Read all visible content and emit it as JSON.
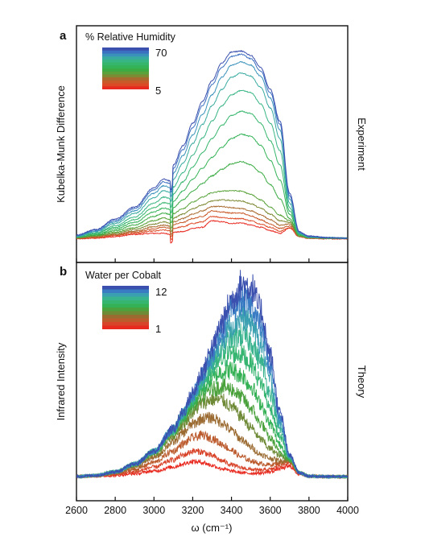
{
  "chart_data": [
    {
      "panel": "a",
      "type": "line",
      "ylabel": "Kubelka-Munk Difference",
      "side_label": "Experiment",
      "legend": {
        "title": "% Relative Humidity",
        "max_label": "70",
        "min_label": "5"
      },
      "xlim": [
        2600,
        4000
      ],
      "series_count": 14,
      "x": [
        2600,
        2700,
        2800,
        2900,
        3000,
        3050,
        3090,
        3100,
        3150,
        3200,
        3250,
        3300,
        3350,
        3400,
        3450,
        3500,
        3550,
        3600,
        3650,
        3700,
        3750,
        3800,
        3900,
        4000
      ],
      "series": [
        {
          "values": [
            0.5,
            0.6,
            0.9,
            1.3,
            1.5,
            1.5,
            1.3,
            1.7,
            1.8,
            2.4,
            2.6,
            3.8,
            3.6,
            3.3,
            3.4,
            3.0,
            2.6,
            2.0,
            1.5,
            2.5,
            0.9,
            0.6,
            0.5,
            0.5
          ]
        },
        {
          "values": [
            0.5,
            0.7,
            1.1,
            1.5,
            1.9,
            2.1,
            1.9,
            2.4,
            2.7,
            3.3,
            3.6,
            4.6,
            4.4,
            4.2,
            4.2,
            3.8,
            3.2,
            2.6,
            1.9,
            2.5,
            0.9,
            0.6,
            0.5,
            0.5
          ]
        },
        {
          "values": [
            0.6,
            0.8,
            1.2,
            1.7,
            2.3,
            2.6,
            2.4,
            3.1,
            3.5,
            4.2,
            4.6,
            5.6,
            5.4,
            5.2,
            5.2,
            4.7,
            4.0,
            3.2,
            2.4,
            2.8,
            1.0,
            0.7,
            0.6,
            0.5
          ]
        },
        {
          "values": [
            0.6,
            0.9,
            1.3,
            1.9,
            2.7,
            3.0,
            2.8,
            3.6,
            4.2,
            5.0,
            5.6,
            6.4,
            6.4,
            6.2,
            6.0,
            5.6,
            4.9,
            4.0,
            3.0,
            3.2,
            1.0,
            0.7,
            0.6,
            0.6
          ]
        },
        {
          "values": [
            0.7,
            1.0,
            1.5,
            2.2,
            3.2,
            3.6,
            3.3,
            4.3,
            5.0,
            6.0,
            6.7,
            7.4,
            7.6,
            7.5,
            7.4,
            6.9,
            6.1,
            5.0,
            3.8,
            3.5,
            1.0,
            0.7,
            0.6,
            0.6
          ]
        },
        {
          "values": [
            0.7,
            1.1,
            1.7,
            2.5,
            3.8,
            4.3,
            4.0,
            5.1,
            6.0,
            7.2,
            8.1,
            8.9,
            9.2,
            9.3,
            9.2,
            8.6,
            7.6,
            6.3,
            4.8,
            3.8,
            1.0,
            0.7,
            0.6,
            0.6
          ]
        },
        {
          "values": [
            0.8,
            1.2,
            2.0,
            3.0,
            4.6,
            5.2,
            4.9,
            6.2,
            7.6,
            9.2,
            10.6,
            12.0,
            13.2,
            14.2,
            14.6,
            14.0,
            12.6,
            10.4,
            7.8,
            4.2,
            1.2,
            0.7,
            0.6,
            0.6
          ]
        },
        {
          "values": [
            0.8,
            1.3,
            2.3,
            3.5,
            5.4,
            6.1,
            5.8,
            7.4,
            9.2,
            11.4,
            13.4,
            15.4,
            17.2,
            18.8,
            19.6,
            19.2,
            17.6,
            14.8,
            11.2,
            5.0,
            1.3,
            0.8,
            0.6,
            0.6
          ]
        },
        {
          "values": [
            0.9,
            1.5,
            2.6,
            4.0,
            6.2,
            7.1,
            6.8,
            8.7,
            10.9,
            13.6,
            16.2,
            18.8,
            21.2,
            23.0,
            23.8,
            23.4,
            21.6,
            18.4,
            14.0,
            5.6,
            1.3,
            0.8,
            0.7,
            0.6
          ]
        },
        {
          "values": [
            0.9,
            1.6,
            2.9,
            4.5,
            7.0,
            8.1,
            7.8,
            10.0,
            12.6,
            15.8,
            18.9,
            22.0,
            24.8,
            26.8,
            27.6,
            27.2,
            25.2,
            21.6,
            16.6,
            6.2,
            1.4,
            0.8,
            0.7,
            0.6
          ]
        },
        {
          "values": [
            1.0,
            1.8,
            3.3,
            5.1,
            8.0,
            9.3,
            8.9,
            11.4,
            14.3,
            17.9,
            21.4,
            24.8,
            27.8,
            30.0,
            30.8,
            30.2,
            28.2,
            24.4,
            18.8,
            7.0,
            1.5,
            0.8,
            0.7,
            0.6
          ]
        },
        {
          "values": [
            1.0,
            1.9,
            3.6,
            5.6,
            8.8,
            10.2,
            9.8,
            12.5,
            15.7,
            19.5,
            23.2,
            26.8,
            30.0,
            32.2,
            32.8,
            32.2,
            30.2,
            26.2,
            20.4,
            7.8,
            1.6,
            0.9,
            0.7,
            0.6
          ]
        },
        {
          "values": [
            1.1,
            2.1,
            3.9,
            6.0,
            9.4,
            10.9,
            10.5,
            13.4,
            16.8,
            20.8,
            24.8,
            28.6,
            31.8,
            33.8,
            34.2,
            33.4,
            31.2,
            27.2,
            21.4,
            8.4,
            1.7,
            0.9,
            0.7,
            0.6
          ]
        },
        {
          "values": [
            1.2,
            2.2,
            4.1,
            6.3,
            9.8,
            11.4,
            11.0,
            14.0,
            17.5,
            21.6,
            25.6,
            29.4,
            32.6,
            34.6,
            34.8,
            34.0,
            31.8,
            27.8,
            22.0,
            8.8,
            1.8,
            1.0,
            0.7,
            0.6
          ]
        }
      ],
      "colors": [
        "#e8291f",
        "#dc4a25",
        "#c85a2a",
        "#a96a2f",
        "#7f8a35",
        "#5aa33a",
        "#3bab44",
        "#34b257",
        "#36b56c",
        "#38b584",
        "#39aaa0",
        "#3a92bb",
        "#3b6fc0",
        "#3a4fae"
      ]
    },
    {
      "panel": "b",
      "type": "line",
      "ylabel": "Infrared Intensity",
      "side_label": "Theory",
      "legend": {
        "title": "Water per Cobalt",
        "max_label": "12",
        "min_label": "1"
      },
      "xlabel": "ω (cm⁻¹)",
      "xlim": [
        2600,
        4000
      ],
      "xticks": [
        2600,
        2800,
        3000,
        3200,
        3400,
        3600,
        3800,
        4000
      ],
      "series_count": 12,
      "x": [
        2600,
        2700,
        2800,
        2900,
        3000,
        3100,
        3150,
        3200,
        3250,
        3300,
        3350,
        3400,
        3450,
        3500,
        3550,
        3600,
        3650,
        3700,
        3750,
        3800,
        3900,
        4000
      ],
      "series": [
        {
          "values": [
            0.0,
            0.1,
            0.3,
            0.7,
            1.4,
            2.4,
            3.2,
            3.8,
            3.6,
            2.8,
            2.0,
            1.4,
            1.0,
            0.8,
            0.9,
            1.2,
            2.0,
            2.6,
            0.6,
            0.1,
            0.0,
            0.0
          ]
        },
        {
          "values": [
            0.0,
            0.2,
            0.5,
            1.2,
            2.4,
            4.2,
            5.4,
            6.4,
            6.2,
            5.2,
            4.0,
            3.0,
            2.2,
            1.8,
            1.6,
            1.8,
            2.8,
            3.4,
            0.8,
            0.1,
            0.0,
            0.0
          ]
        },
        {
          "values": [
            0.0,
            0.2,
            0.7,
            1.8,
            3.6,
            6.4,
            8.2,
            9.8,
            10.4,
            9.6,
            8.2,
            6.6,
            5.0,
            4.0,
            3.2,
            3.0,
            3.4,
            3.8,
            0.9,
            0.1,
            0.0,
            0.0
          ]
        },
        {
          "values": [
            0.0,
            0.3,
            1.0,
            2.4,
            4.8,
            8.6,
            11.0,
            13.2,
            14.6,
            14.8,
            13.6,
            11.6,
            9.4,
            7.4,
            5.6,
            4.6,
            4.0,
            4.0,
            1.0,
            0.1,
            0.0,
            0.0
          ]
        },
        {
          "values": [
            0.0,
            0.3,
            1.1,
            2.8,
            5.6,
            10.2,
            13.2,
            16.2,
            18.4,
            19.4,
            19.2,
            17.6,
            15.2,
            12.4,
            9.4,
            7.0,
            5.2,
            4.2,
            1.0,
            0.1,
            0.0,
            0.0
          ]
        },
        {
          "values": [
            0.0,
            0.3,
            1.2,
            3.0,
            6.0,
            11.0,
            14.4,
            17.8,
            20.4,
            22.0,
            22.6,
            22.0,
            20.0,
            17.2,
            13.4,
            9.6,
            6.2,
            4.2,
            1.0,
            0.1,
            0.0,
            0.0
          ]
        },
        {
          "values": [
            0.0,
            0.3,
            1.2,
            3.1,
            6.2,
            11.4,
            15.0,
            18.8,
            22.0,
            24.6,
            26.4,
            26.8,
            25.6,
            22.8,
            18.4,
            13.2,
            8.0,
            4.4,
            1.0,
            0.1,
            0.0,
            0.0
          ]
        },
        {
          "values": [
            0.0,
            0.3,
            1.2,
            3.1,
            6.3,
            11.6,
            15.4,
            19.4,
            23.2,
            26.6,
            29.4,
            31.0,
            30.8,
            28.6,
            23.8,
            17.2,
            10.0,
            4.6,
            1.0,
            0.1,
            0.0,
            0.0
          ]
        },
        {
          "values": [
            0.0,
            0.3,
            1.2,
            3.1,
            6.3,
            11.7,
            15.6,
            19.8,
            24.0,
            28.2,
            32.0,
            34.8,
            35.6,
            34.0,
            29.0,
            21.0,
            11.8,
            4.8,
            1.0,
            0.1,
            0.0,
            0.0
          ]
        },
        {
          "values": [
            0.0,
            0.3,
            1.2,
            3.1,
            6.4,
            11.8,
            15.8,
            20.2,
            24.8,
            29.6,
            34.4,
            38.2,
            40.0,
            38.8,
            33.6,
            24.4,
            13.4,
            5.0,
            1.0,
            0.1,
            0.0,
            0.0
          ]
        },
        {
          "values": [
            0.0,
            0.3,
            1.2,
            3.1,
            6.4,
            11.9,
            16.0,
            20.6,
            25.6,
            31.0,
            36.6,
            41.4,
            44.2,
            43.4,
            38.0,
            27.6,
            14.8,
            5.2,
            1.0,
            0.1,
            0.0,
            0.0
          ]
        },
        {
          "values": [
            0.0,
            0.3,
            1.2,
            3.1,
            6.4,
            12.0,
            16.2,
            21.0,
            26.4,
            32.4,
            38.6,
            44.4,
            48.2,
            47.8,
            42.0,
            30.4,
            16.0,
            5.4,
            1.0,
            0.1,
            0.0,
            0.0
          ]
        }
      ],
      "colors": [
        "#e8291f",
        "#d8442a",
        "#bb5a2c",
        "#9a6a30",
        "#6f8a36",
        "#4ba13c",
        "#35b155",
        "#36b571",
        "#39b38d",
        "#3a9fb0",
        "#3a7cc3",
        "#3a4fae"
      ]
    }
  ]
}
